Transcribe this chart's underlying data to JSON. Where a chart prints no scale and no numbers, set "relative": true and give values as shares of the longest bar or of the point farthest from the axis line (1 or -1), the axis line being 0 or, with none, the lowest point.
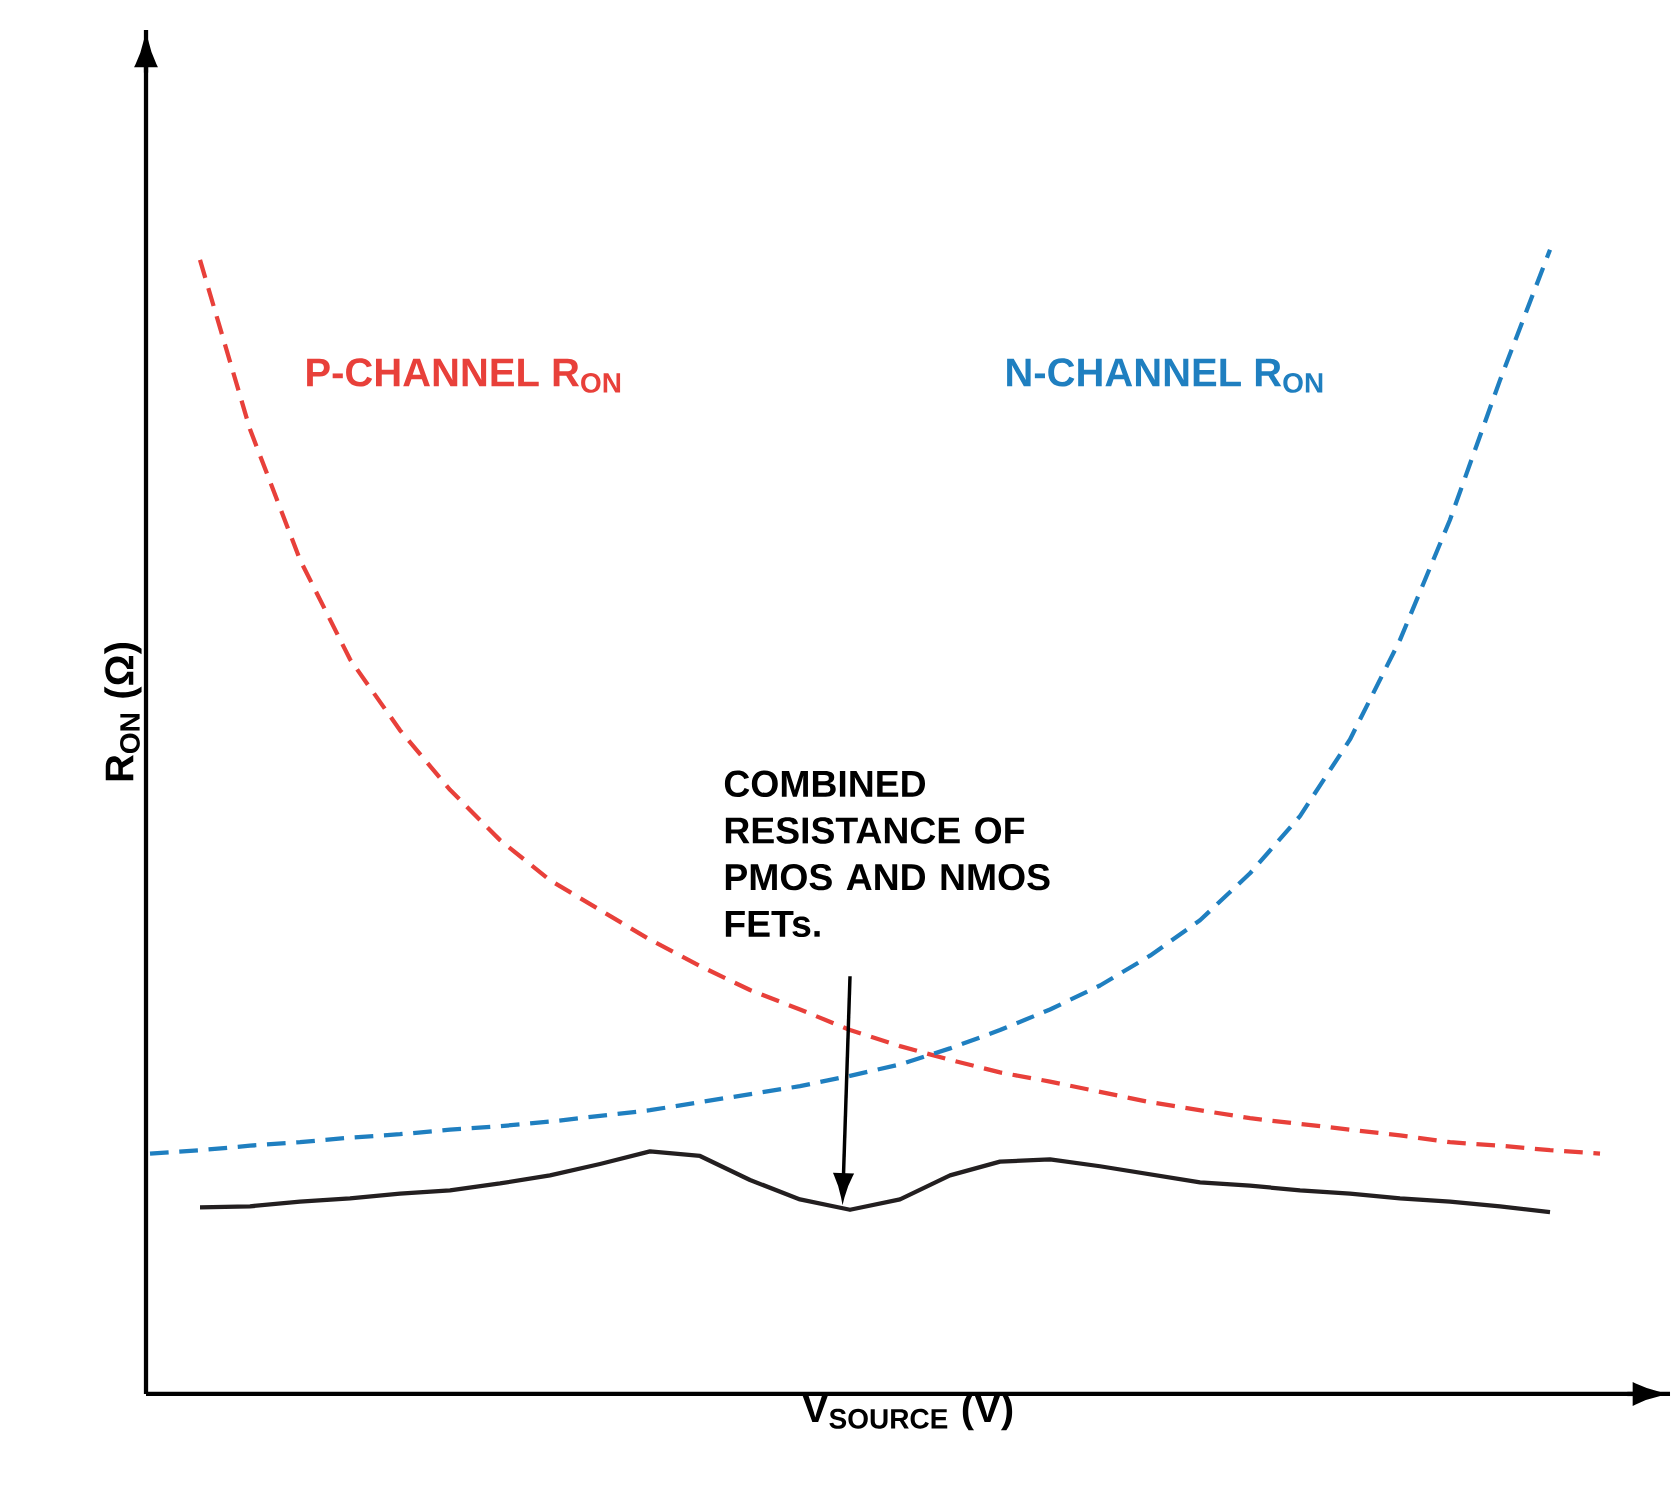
{
  "chart_data": {
    "type": "line",
    "relative": true,
    "xlabel": "V$_{SOURCE}$ (V)",
    "ylabel": "R$_{ON}$ (Ω)",
    "categories": [
      null,
      null,
      null,
      null,
      null,
      null,
      null,
      null,
      null,
      null,
      null,
      null,
      null,
      null,
      null,
      null,
      null,
      null,
      null,
      null,
      null,
      null,
      null,
      null,
      null,
      null,
      null,
      null,
      null,
      null
    ],
    "series": [
      {
        "name": "P-CHANNEL R$_{ON}$",
        "color": "#e8403a",
        "line_style": "dashed",
        "values": [
          null,
          0.991,
          0.843,
          0.729,
          0.642,
          0.58,
          0.528,
          0.484,
          0.449,
          0.423,
          0.397,
          0.374,
          0.353,
          0.336,
          0.318,
          0.304,
          0.292,
          0.281,
          0.273,
          0.264,
          0.255,
          0.248,
          0.241,
          0.236,
          0.231,
          0.226,
          0.22,
          0.217,
          0.213,
          0.21
        ]
      },
      {
        "name": "N-CHANNEL R$_{ON}$",
        "color": "#1f7fc0",
        "line_style": "dashed",
        "values": [
          0.21,
          0.213,
          0.217,
          0.22,
          0.224,
          0.227,
          0.231,
          0.234,
          0.238,
          0.243,
          0.248,
          0.255,
          0.262,
          0.269,
          0.278,
          0.288,
          0.302,
          0.318,
          0.336,
          0.357,
          0.383,
          0.414,
          0.455,
          0.505,
          0.572,
          0.659,
          0.764,
          0.886,
          1.0,
          null
        ]
      },
      {
        "color": "#231f20",
        "line_style": "solid",
        "values": [
          null,
          0.163,
          0.164,
          0.168,
          0.171,
          0.175,
          0.178,
          0.184,
          0.191,
          0.201,
          0.212,
          0.208,
          0.187,
          0.17,
          0.161,
          0.17,
          0.191,
          0.203,
          0.205,
          0.199,
          0.192,
          0.185,
          0.182,
          0.178,
          0.175,
          0.171,
          0.168,
          0.164,
          0.159,
          null
        ]
      }
    ],
    "annotations": [
      "COMBINED RESISTANCE OF PMOS AND NMOS FETs."
    ]
  }
}
